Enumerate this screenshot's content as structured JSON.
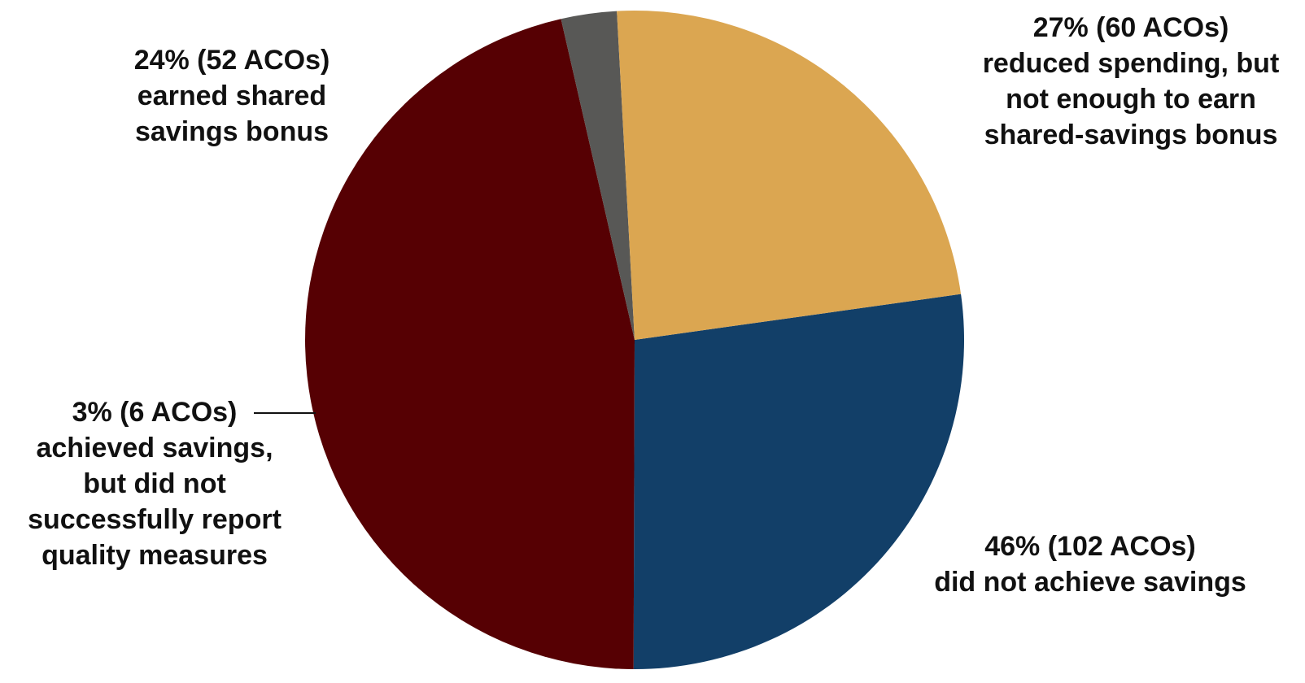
{
  "chart_data": {
    "type": "pie",
    "start_angle_deg": -8,
    "direction": "clockwise",
    "slices": [
      {
        "key": "reduced",
        "value": 60,
        "percent": 27,
        "color": "#123f68",
        "label_lines": [
          "27% (60 ACOs)",
          "reduced spending, but",
          "not enough to earn",
          "shared-savings bonus"
        ]
      },
      {
        "key": "notachieved",
        "value": 102,
        "percent": 46,
        "color": "#560003",
        "label_lines": [
          "46% (102 ACOs)",
          "did not achieve savings"
        ]
      },
      {
        "key": "achieved",
        "value": 6,
        "percent": 3,
        "color": "#585856",
        "label_lines": [
          "3% (6 ACOs)",
          "achieved savings,",
          "but did not",
          "successfully report",
          "quality measures"
        ]
      },
      {
        "key": "earned",
        "value": 52,
        "percent": 24,
        "color": "#dba651",
        "label_lines": [
          "24% (52 ACOs)",
          "earned shared",
          "savings bonus"
        ]
      }
    ]
  }
}
